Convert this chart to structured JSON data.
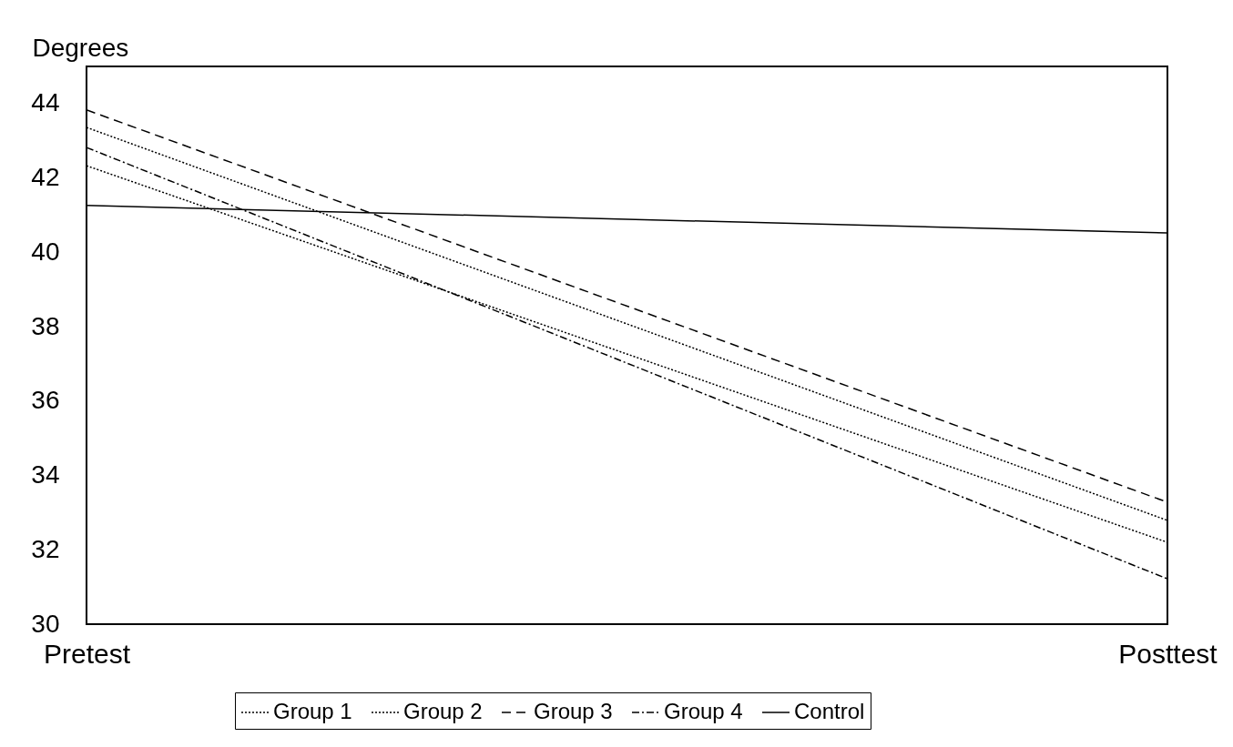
{
  "chart_data": {
    "type": "line",
    "ylabel": "Degrees",
    "categories": [
      "Pretest",
      "Posttest"
    ],
    "series": [
      {
        "name": "Group 1",
        "color": "#000000",
        "line_style": "dotted",
        "values": [
          43.36,
          32.79
        ]
      },
      {
        "name": "Group 2",
        "color": "#000000",
        "line_style": "dotted",
        "values": [
          42.33,
          32.2
        ]
      },
      {
        "name": "Group 3",
        "color": "#000000",
        "line_style": "dashed",
        "values": [
          43.83,
          33.28
        ]
      },
      {
        "name": "Group 4",
        "color": "#000000",
        "line_style": "dashdot",
        "values": [
          42.82,
          31.22
        ]
      },
      {
        "name": "Control",
        "color": "#000000",
        "line_style": "solid",
        "values": [
          41.26,
          40.52
        ]
      }
    ],
    "ylim": [
      30,
      45
    ],
    "yticks": [
      30,
      32,
      34,
      36,
      38,
      40,
      42,
      44
    ],
    "grid": false,
    "legend": "bottom",
    "marker": "none"
  }
}
